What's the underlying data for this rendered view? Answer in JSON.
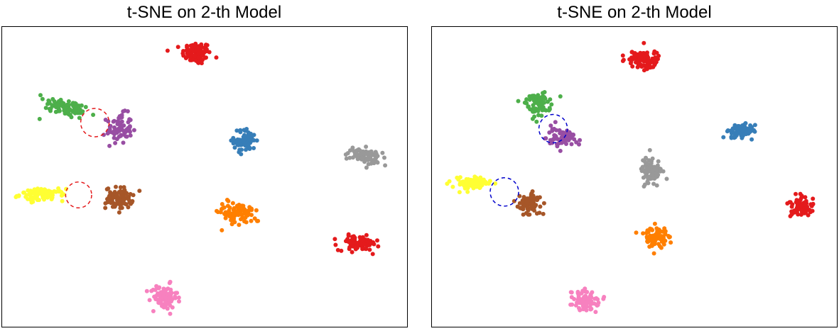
{
  "chart_data": [
    {
      "type": "scatter",
      "title": "t-SNE on 2-th Model",
      "xlabel": "",
      "ylabel": "",
      "xlim": [
        0,
        100
      ],
      "ylim": [
        0,
        100
      ],
      "ticks": false,
      "clusters": [
        {
          "color": "#e41a1c",
          "center": [
            48,
            91
          ],
          "spread": [
            3.2,
            3.4
          ],
          "count": 100
        },
        {
          "color": "#4daf4a",
          "center": [
            16,
            73
          ],
          "spread": [
            5.5,
            2.6
          ],
          "count": 90,
          "angle": -22
        },
        {
          "color": "#984ea3",
          "center": [
            29,
            66
          ],
          "spread": [
            2.8,
            4.5
          ],
          "count": 75
        },
        {
          "color": "#377eb8",
          "center": [
            60,
            62
          ],
          "spread": [
            2.5,
            3.5
          ],
          "count": 75
        },
        {
          "color": "#999999",
          "center": [
            89,
            57
          ],
          "spread": [
            4.0,
            2.2
          ],
          "count": 80,
          "angle": -18
        },
        {
          "color": "#ffff33",
          "center": [
            10,
            44
          ],
          "spread": [
            5.0,
            1.8
          ],
          "count": 90
        },
        {
          "color": "#a65628",
          "center": [
            29,
            43
          ],
          "spread": [
            3.0,
            3.2
          ],
          "count": 85
        },
        {
          "color": "#ff7f00",
          "center": [
            58,
            38
          ],
          "spread": [
            3.5,
            3.2
          ],
          "count": 90,
          "angle": -25
        },
        {
          "color": "#e41a1c",
          "center": [
            88,
            28
          ],
          "spread": [
            4.5,
            2.2
          ],
          "count": 90
        },
        {
          "color": "#f781bf",
          "center": [
            40,
            10
          ],
          "spread": [
            3.0,
            3.8
          ],
          "count": 85
        }
      ],
      "highlight_circles": [
        {
          "center": [
            23,
            68
          ],
          "radius": 3.5,
          "color": "#e41a1c",
          "style": "dashed"
        },
        {
          "center": [
            19,
            44
          ],
          "radius": 3.2,
          "color": "#e41a1c",
          "style": "dashed"
        }
      ]
    },
    {
      "type": "scatter",
      "title": "t-SNE on 2-th Model",
      "xlabel": "",
      "ylabel": "",
      "xlim": [
        0,
        100
      ],
      "ylim": [
        0,
        100
      ],
      "ticks": false,
      "clusters": [
        {
          "color": "#e41a1c",
          "center": [
            52,
            89
          ],
          "spread": [
            3.5,
            2.8
          ],
          "count": 100
        },
        {
          "color": "#4daf4a",
          "center": [
            26,
            74
          ],
          "spread": [
            2.6,
            3.5
          ],
          "count": 75
        },
        {
          "color": "#984ea3",
          "center": [
            32,
            63
          ],
          "spread": [
            3.5,
            3.0
          ],
          "count": 70
        },
        {
          "color": "#377eb8",
          "center": [
            76,
            65
          ],
          "spread": [
            3.3,
            2.2
          ],
          "count": 80
        },
        {
          "color": "#999999",
          "center": [
            54,
            52
          ],
          "spread": [
            2.5,
            4.0
          ],
          "count": 85
        },
        {
          "color": "#ffff33",
          "center": [
            10,
            48
          ],
          "spread": [
            4.5,
            2.0
          ],
          "count": 85
        },
        {
          "color": "#a65628",
          "center": [
            24,
            41
          ],
          "spread": [
            3.0,
            3.2
          ],
          "count": 80
        },
        {
          "color": "#e41a1c",
          "center": [
            91,
            40
          ],
          "spread": [
            3.0,
            3.2
          ],
          "count": 80
        },
        {
          "color": "#ff7f00",
          "center": [
            55,
            30
          ],
          "spread": [
            3.0,
            3.2
          ],
          "count": 90
        },
        {
          "color": "#f781bf",
          "center": [
            38,
            9
          ],
          "spread": [
            3.0,
            3.2
          ],
          "count": 85
        }
      ],
      "highlight_circles": [
        {
          "center": [
            30,
            66
          ],
          "radius": 3.5,
          "color": "#0000cc",
          "style": "dashed"
        },
        {
          "center": [
            18,
            45
          ],
          "radius": 3.5,
          "color": "#0000cc",
          "style": "dashed"
        }
      ]
    }
  ]
}
